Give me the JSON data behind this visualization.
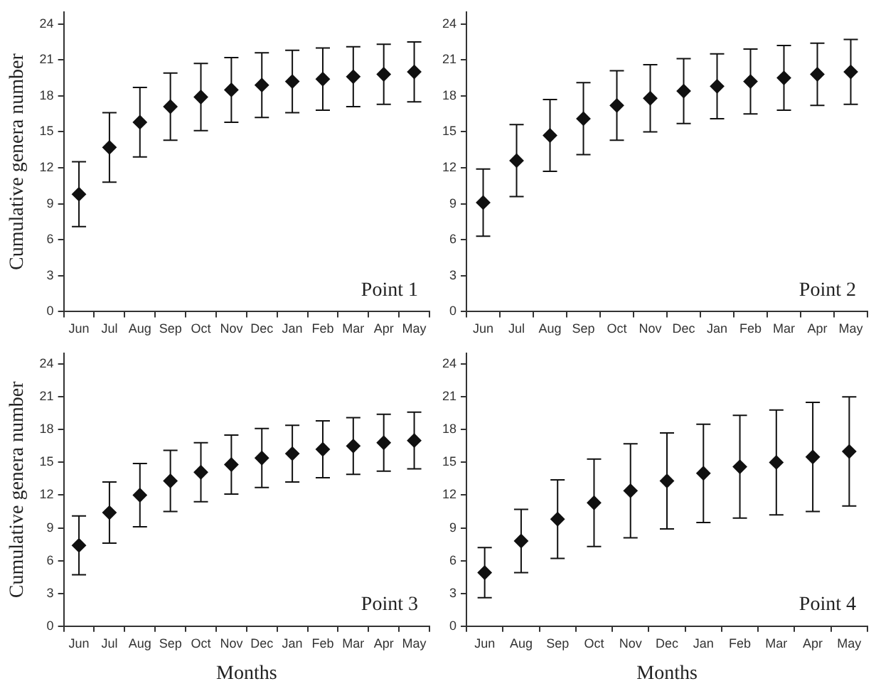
{
  "chart_data": [
    {
      "type": "scatter",
      "ylabel": "Cumulative genera number",
      "annotations": [
        "Point 1"
      ],
      "categories": [
        "Jun",
        "Jul",
        "Aug",
        "Sep",
        "Oct",
        "Nov",
        "Dec",
        "Jan",
        "Feb",
        "Mar",
        "Apr",
        "May"
      ],
      "values": [
        9.8,
        13.7,
        15.8,
        17.1,
        17.9,
        18.5,
        18.9,
        19.2,
        19.4,
        19.6,
        19.8,
        20.0
      ],
      "errors": [
        2.7,
        2.9,
        2.9,
        2.8,
        2.8,
        2.7,
        2.7,
        2.6,
        2.6,
        2.5,
        2.5,
        2.5
      ],
      "color": "#111111",
      "marker": "diamond",
      "ylim": [
        0,
        25
      ],
      "yticks": [
        0,
        3,
        6,
        9,
        12,
        15,
        18,
        21,
        24
      ],
      "grid": false,
      "legend": false
    },
    {
      "type": "scatter",
      "annotations": [
        "Point 2"
      ],
      "categories": [
        "Jun",
        "Jul",
        "Aug",
        "Sep",
        "Oct",
        "Nov",
        "Dec",
        "Jan",
        "Feb",
        "Mar",
        "Apr",
        "May"
      ],
      "values": [
        9.1,
        12.6,
        14.7,
        16.1,
        17.2,
        17.8,
        18.4,
        18.8,
        19.2,
        19.5,
        19.8,
        20.0
      ],
      "errors": [
        2.8,
        3.0,
        3.0,
        3.0,
        2.9,
        2.8,
        2.7,
        2.7,
        2.7,
        2.7,
        2.6,
        2.7
      ],
      "color": "#111111",
      "marker": "diamond",
      "ylim": [
        0,
        25
      ],
      "yticks": [
        0,
        3,
        6,
        9,
        12,
        15,
        18,
        21,
        24
      ],
      "grid": false,
      "legend": false
    },
    {
      "type": "scatter",
      "ylabel": "Cumulative genera number",
      "xlabel": "Months",
      "annotations": [
        "Point 3"
      ],
      "categories": [
        "Jun",
        "Jul",
        "Aug",
        "Sep",
        "Oct",
        "Nov",
        "Dec",
        "Jan",
        "Feb",
        "Mar",
        "Apr",
        "May"
      ],
      "values": [
        7.4,
        10.4,
        12.0,
        13.3,
        14.1,
        14.8,
        15.4,
        15.8,
        16.2,
        16.5,
        16.8,
        17.0
      ],
      "errors": [
        2.7,
        2.8,
        2.9,
        2.8,
        2.7,
        2.7,
        2.7,
        2.6,
        2.6,
        2.6,
        2.6,
        2.6
      ],
      "color": "#111111",
      "marker": "diamond",
      "ylim": [
        0,
        25
      ],
      "yticks": [
        0,
        3,
        6,
        9,
        12,
        15,
        18,
        21,
        24
      ],
      "grid": false,
      "legend": false
    },
    {
      "type": "scatter",
      "xlabel": "Months",
      "annotations": [
        "Point 4"
      ],
      "categories": [
        "Jun",
        "Aug",
        "Sep",
        "Oct",
        "Nov",
        "Dec",
        "Jan",
        "Feb",
        "Mar",
        "Apr",
        "May"
      ],
      "values": [
        4.9,
        7.8,
        9.8,
        11.3,
        12.4,
        13.3,
        14.0,
        14.6,
        15.0,
        15.5,
        16.0
      ],
      "errors": [
        2.3,
        2.9,
        3.6,
        4.0,
        4.3,
        4.4,
        4.5,
        4.7,
        4.8,
        5.0,
        5.0
      ],
      "color": "#111111",
      "marker": "diamond",
      "ylim": [
        0,
        25
      ],
      "yticks": [
        0,
        3,
        6,
        9,
        12,
        15,
        18,
        21,
        24
      ],
      "grid": false,
      "legend": false
    }
  ]
}
